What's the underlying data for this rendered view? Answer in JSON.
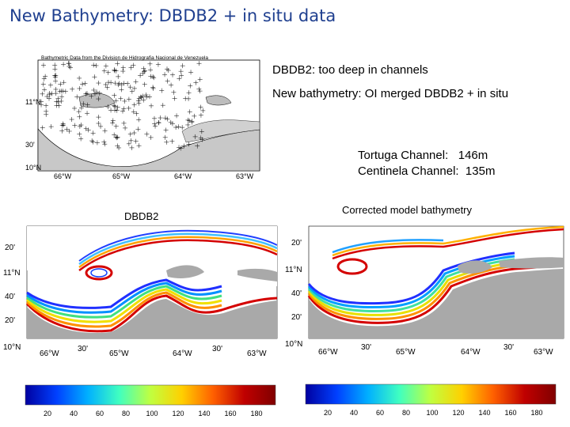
{
  "slide": {
    "title": "New Bathymetry: DBDB2 + in situ data"
  },
  "notes": {
    "line1": "DBDB2: too deep in channels",
    "line2": "New bathymetry: OI merged DBDB2 + in situ",
    "tortuga": "Tortuga Channel:   146m",
    "centinela": "Centinela Channel:  135m"
  },
  "top_map": {
    "title": "Bathymetric Data from the Division de Hidrografia Nacional de Venezuela",
    "y_labels": [
      "11°N",
      "30'",
      "10°N"
    ],
    "x_labels": [
      "66°W",
      "65°W",
      "64°W",
      "63°W"
    ]
  },
  "left_map": {
    "label": "DBDB2",
    "y_labels": [
      "20'",
      "11°N",
      "40'",
      "20'",
      "10°N"
    ],
    "x_labels": [
      "66°W",
      "30'",
      "65°W",
      "64°W",
      "30'",
      "63°W"
    ]
  },
  "right_map": {
    "label": "Corrected model bathymetry",
    "y_labels": [
      "20'",
      "11°N",
      "40'",
      "20'",
      "10°N"
    ],
    "x_labels": [
      "66°W",
      "30'",
      "65°W",
      "64°W",
      "30'",
      "63°W"
    ]
  },
  "colorbar": {
    "ticks": [
      "20",
      "40",
      "60",
      "80",
      "100",
      "120",
      "140",
      "160",
      "180"
    ],
    "colors": [
      "#0000a0",
      "#0040ff",
      "#00b0ff",
      "#40ffc0",
      "#c0ff40",
      "#ffd000",
      "#ff6000",
      "#c00000",
      "#800000"
    ]
  }
}
